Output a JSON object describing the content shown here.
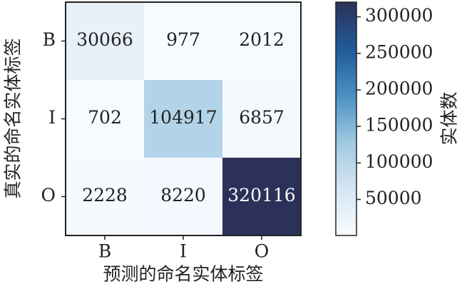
{
  "chart_data": {
    "type": "heatmap",
    "xlabel": "预测的命名实体标签",
    "ylabel": "真实的命名实体标签",
    "x_categories": [
      "B",
      "I",
      "O"
    ],
    "y_categories": [
      "B",
      "I",
      "O"
    ],
    "values": [
      [
        30066,
        977,
        2012
      ],
      [
        702,
        104917,
        6857
      ],
      [
        2228,
        8220,
        320116
      ]
    ],
    "colorbar_label": "实体数",
    "clim": [
      702,
      320116
    ],
    "cticks": [
      50000,
      100000,
      150000,
      200000,
      250000,
      300000
    ],
    "colormap": [
      "#f7fbff",
      "#d6e6f4",
      "#9ecae1",
      "#4a90c4",
      "#1f5a9a",
      "#2b3158"
    ]
  }
}
